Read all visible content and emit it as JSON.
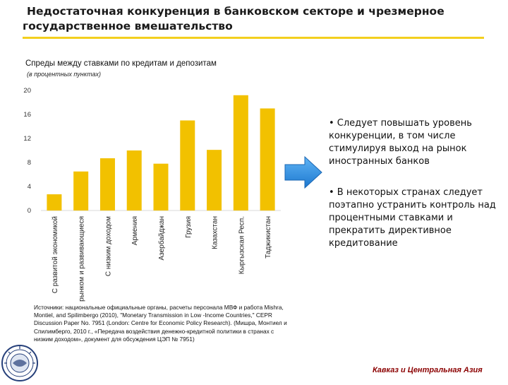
{
  "header": {
    "title_line1": "Недостаточная конкуренция в банковском секторе и чрезмерное",
    "title_line2": "государственное вмешательство"
  },
  "chart_data": {
    "type": "bar",
    "title": "Спреды между ставками по кредитам и депозитам",
    "subtitle": "(в процентных пунктах)",
    "categories": [
      "С развитой экономикой",
      "С форм. рынком и развивающиеся",
      "С низким доходом",
      "Армения",
      "Азербайджан",
      "Грузия",
      "Казахстан",
      "Кыргызская Респ.",
      "Таджикистан"
    ],
    "values": [
      2.7,
      6.5,
      8.7,
      10.0,
      7.8,
      15.0,
      10.1,
      19.2,
      17.0
    ],
    "ylim": [
      0,
      20
    ],
    "yticks": [
      "0",
      "4",
      "8",
      "12",
      "16",
      "20"
    ],
    "bar_color": "#f2c100",
    "grid": false
  },
  "bullets": [
    "• Следует повышать уровень конкуренции, в том числе стимулируя выход на рынок иностранных банков",
    "• В некоторых странах следует поэтапно устранить контроль над процентными ставками и прекратить директивное кредитование"
  ],
  "source": {
    "text": "Источники: национальные официальные органы, расчеты персонала МВФ и работа Mishra, Montiel, and Spilimbergo (2010), \"Monetary Transmission in Low -Income Countries,\" CEPR Discussion Paper No. 7951 (London: Centre for Economic Policy Research). (Мишра, Монтиел и Спилимберго, 2010 г., «Передача воздействия денежно-кредитной политики в странах с низким доходом», документ для обсуждения ЦЭП № 7951)"
  },
  "footer": {
    "region": "Кавказ и Центральная Азия"
  },
  "colors": {
    "accent": "#f3cf1e",
    "arrow": "#2f8fe0",
    "region": "#8b0000"
  },
  "icons": {
    "arrow": "arrow-right-icon",
    "logo": "imf-seal-icon"
  }
}
